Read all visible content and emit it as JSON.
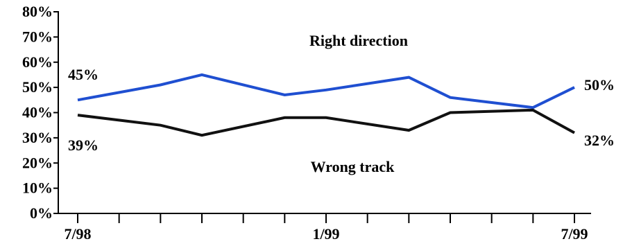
{
  "chart_data": {
    "type": "line",
    "x_tick_labels": [
      "7/98",
      "1/99",
      "7/99"
    ],
    "y_tick_labels": [
      "0%",
      "10%",
      "20%",
      "30%",
      "40%",
      "50%",
      "60%",
      "70%",
      "80%"
    ],
    "ylim": [
      0,
      80
    ],
    "grid": false,
    "series": [
      {
        "name": "Right direction",
        "color": "#1f4fd1",
        "x": [
          "7/98",
          "9/98",
          "10/98",
          "12/98",
          "1/99",
          "3/99",
          "4/99",
          "6/99",
          "7/99"
        ],
        "values": [
          45,
          51,
          55,
          47,
          49,
          54,
          46,
          42,
          50
        ]
      },
      {
        "name": "Wrong track",
        "color": "#111111",
        "x": [
          "7/98",
          "9/98",
          "10/98",
          "12/98",
          "1/99",
          "3/99",
          "4/99",
          "6/99",
          "7/99"
        ],
        "values": [
          39,
          35,
          31,
          38,
          38,
          33,
          40,
          41,
          32
        ]
      }
    ],
    "data_labels": {
      "right_start": "45%",
      "right_end": "50%",
      "wrong_start": "39%",
      "wrong_end": "32%"
    }
  }
}
